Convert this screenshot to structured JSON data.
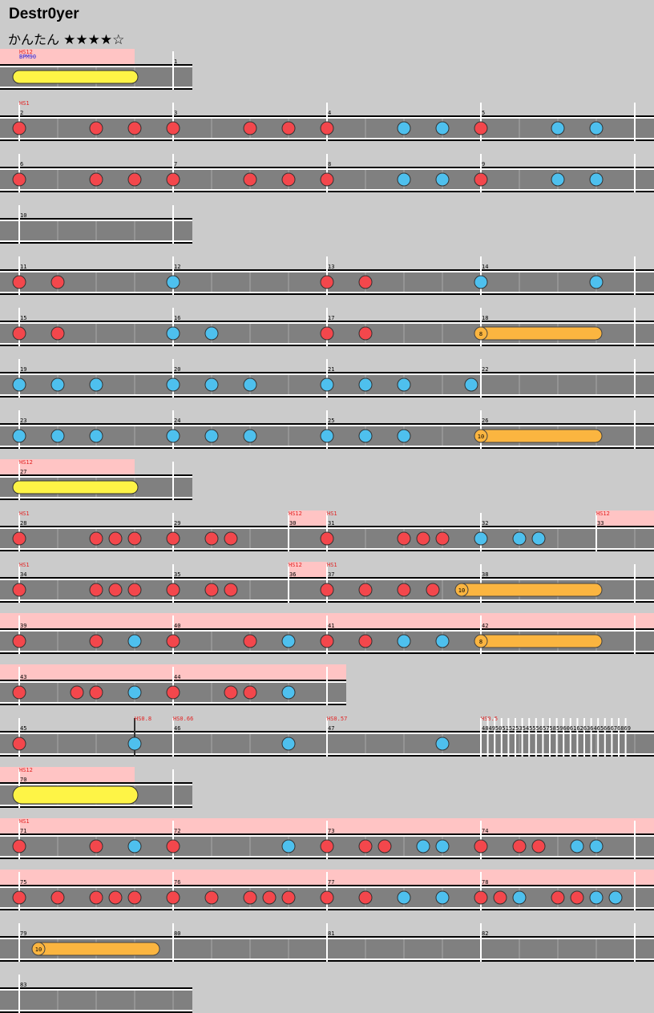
{
  "song": {
    "title": "Destr0yer",
    "difficulty": "かんたん",
    "stars": "★★★★☆"
  },
  "colors": {
    "don": "#f3474c",
    "ka": "#4ec0ee",
    "roll": "#fbb540",
    "balloon": "#fef446",
    "hs": "#ffc4c4",
    "lane": "#808080"
  },
  "rows": [
    {
      "hl": [
        [
          0,
          168
        ]
      ],
      "w": 240,
      "bars": [
        {
          "x": 216,
          "label": "1"
        }
      ],
      "ev": [
        {
          "x": 24,
          "t": "HS12",
          "c": "r",
          "y": 2
        },
        {
          "x": 24,
          "t": "BPM90",
          "c": "b",
          "y": 1
        }
      ],
      "notes": [],
      "rolls": [
        {
          "x1": 24,
          "x2": 164,
          "type": "balloon"
        }
      ]
    },
    {
      "hl": [],
      "w": 816,
      "bars": [
        {
          "x": 24,
          "label": "2"
        },
        {
          "x": 216,
          "label": "3"
        },
        {
          "x": 408,
          "label": "4"
        },
        {
          "x": 600,
          "label": "5"
        },
        {
          "x": 792,
          "label": ""
        }
      ],
      "ev": [
        {
          "x": 24,
          "t": "HS1",
          "c": "r",
          "y": 1
        }
      ],
      "notes": [
        {
          "x": 24,
          "t": "d"
        },
        {
          "x": 120,
          "t": "d"
        },
        {
          "x": 168,
          "t": "d"
        },
        {
          "x": 216,
          "t": "d"
        },
        {
          "x": 312,
          "t": "d"
        },
        {
          "x": 360,
          "t": "d"
        },
        {
          "x": 408,
          "t": "d"
        },
        {
          "x": 504,
          "t": "k"
        },
        {
          "x": 552,
          "t": "k"
        },
        {
          "x": 600,
          "t": "d"
        },
        {
          "x": 696,
          "t": "k"
        },
        {
          "x": 744,
          "t": "k"
        }
      ],
      "rolls": []
    },
    {
      "hl": [],
      "w": 816,
      "bars": [
        {
          "x": 24,
          "label": "6"
        },
        {
          "x": 216,
          "label": "7"
        },
        {
          "x": 408,
          "label": "8"
        },
        {
          "x": 600,
          "label": "9"
        },
        {
          "x": 792,
          "label": ""
        }
      ],
      "ev": [],
      "notes": [
        {
          "x": 24,
          "t": "d"
        },
        {
          "x": 120,
          "t": "d"
        },
        {
          "x": 168,
          "t": "d"
        },
        {
          "x": 216,
          "t": "d"
        },
        {
          "x": 312,
          "t": "d"
        },
        {
          "x": 360,
          "t": "d"
        },
        {
          "x": 408,
          "t": "d"
        },
        {
          "x": 504,
          "t": "k"
        },
        {
          "x": 552,
          "t": "k"
        },
        {
          "x": 600,
          "t": "d"
        },
        {
          "x": 696,
          "t": "k"
        },
        {
          "x": 744,
          "t": "k"
        }
      ],
      "rolls": []
    },
    {
      "hl": [],
      "w": 240,
      "bars": [
        {
          "x": 24,
          "label": "10"
        },
        {
          "x": 216,
          "label": ""
        }
      ],
      "ev": [],
      "notes": [],
      "rolls": []
    },
    {
      "hl": [],
      "w": 816,
      "bars": [
        {
          "x": 24,
          "label": "11"
        },
        {
          "x": 216,
          "label": "12"
        },
        {
          "x": 408,
          "label": "13"
        },
        {
          "x": 600,
          "label": "14"
        },
        {
          "x": 792,
          "label": ""
        }
      ],
      "ev": [],
      "notes": [
        {
          "x": 24,
          "t": "d"
        },
        {
          "x": 72,
          "t": "d"
        },
        {
          "x": 216,
          "t": "k"
        },
        {
          "x": 408,
          "t": "d"
        },
        {
          "x": 456,
          "t": "d"
        },
        {
          "x": 600,
          "t": "k"
        },
        {
          "x": 744,
          "t": "k"
        }
      ],
      "rolls": []
    },
    {
      "hl": [],
      "w": 816,
      "bars": [
        {
          "x": 24,
          "label": "15"
        },
        {
          "x": 216,
          "label": "16"
        },
        {
          "x": 408,
          "label": "17"
        },
        {
          "x": 600,
          "label": "18"
        },
        {
          "x": 792,
          "label": ""
        }
      ],
      "ev": [],
      "notes": [
        {
          "x": 24,
          "t": "d"
        },
        {
          "x": 72,
          "t": "d"
        },
        {
          "x": 216,
          "t": "k"
        },
        {
          "x": 264,
          "t": "k"
        },
        {
          "x": 408,
          "t": "d"
        },
        {
          "x": 456,
          "t": "d"
        }
      ],
      "rolls": [
        {
          "x1": 600,
          "x2": 744,
          "type": "roll",
          "count": "8"
        }
      ]
    },
    {
      "hl": [],
      "w": 816,
      "bars": [
        {
          "x": 24,
          "label": "19"
        },
        {
          "x": 216,
          "label": "20"
        },
        {
          "x": 408,
          "label": "21"
        },
        {
          "x": 600,
          "label": "22"
        },
        {
          "x": 792,
          "label": ""
        }
      ],
      "ev": [],
      "notes": [
        {
          "x": 24,
          "t": "k"
        },
        {
          "x": 72,
          "t": "k"
        },
        {
          "x": 120,
          "t": "k"
        },
        {
          "x": 216,
          "t": "k"
        },
        {
          "x": 264,
          "t": "k"
        },
        {
          "x": 312,
          "t": "k"
        },
        {
          "x": 408,
          "t": "k"
        },
        {
          "x": 456,
          "t": "k"
        },
        {
          "x": 504,
          "t": "k"
        },
        {
          "x": 588,
          "t": "k"
        }
      ],
      "rolls": []
    },
    {
      "hl": [],
      "w": 816,
      "bars": [
        {
          "x": 24,
          "label": "23"
        },
        {
          "x": 216,
          "label": "24"
        },
        {
          "x": 408,
          "label": "25"
        },
        {
          "x": 600,
          "label": "26"
        },
        {
          "x": 792,
          "label": ""
        }
      ],
      "ev": [],
      "notes": [
        {
          "x": 24,
          "t": "k"
        },
        {
          "x": 72,
          "t": "k"
        },
        {
          "x": 120,
          "t": "k"
        },
        {
          "x": 216,
          "t": "k"
        },
        {
          "x": 264,
          "t": "k"
        },
        {
          "x": 312,
          "t": "k"
        },
        {
          "x": 408,
          "t": "k"
        },
        {
          "x": 456,
          "t": "k"
        },
        {
          "x": 504,
          "t": "k"
        }
      ],
      "rolls": [
        {
          "x1": 600,
          "x2": 744,
          "type": "roll",
          "count": "10"
        }
      ]
    },
    {
      "hl": [
        [
          0,
          168
        ]
      ],
      "w": 240,
      "bars": [
        {
          "x": 24,
          "label": "27"
        },
        {
          "x": 216,
          "label": ""
        }
      ],
      "ev": [
        {
          "x": 24,
          "t": "HS12",
          "c": "r",
          "y": 1
        }
      ],
      "notes": [],
      "rolls": [
        {
          "x1": 24,
          "x2": 164,
          "type": "balloon"
        }
      ]
    },
    {
      "hl": [
        [
          360,
          408
        ],
        [
          744,
          816
        ]
      ],
      "w": 816,
      "bars": [
        {
          "x": 24,
          "label": "28"
        },
        {
          "x": 216,
          "label": "29"
        },
        {
          "x": 360,
          "label": "30"
        },
        {
          "x": 408,
          "label": "31"
        },
        {
          "x": 600,
          "label": "32"
        },
        {
          "x": 744,
          "label": "33"
        }
      ],
      "ev": [
        {
          "x": 24,
          "t": "HS1",
          "c": "r",
          "y": 1
        },
        {
          "x": 360,
          "t": "HS12",
          "c": "r",
          "y": 1
        },
        {
          "x": 408,
          "t": "HS1",
          "c": "r",
          "y": 1
        },
        {
          "x": 744,
          "t": "HS12",
          "c": "r",
          "y": 1
        }
      ],
      "notes": [
        {
          "x": 24,
          "t": "d"
        },
        {
          "x": 120,
          "t": "d"
        },
        {
          "x": 144,
          "t": "d"
        },
        {
          "x": 168,
          "t": "d"
        },
        {
          "x": 216,
          "t": "d"
        },
        {
          "x": 264,
          "t": "d"
        },
        {
          "x": 288,
          "t": "d"
        },
        {
          "x": 408,
          "t": "d"
        },
        {
          "x": 504,
          "t": "d"
        },
        {
          "x": 528,
          "t": "d"
        },
        {
          "x": 552,
          "t": "d"
        },
        {
          "x": 600,
          "t": "k"
        },
        {
          "x": 648,
          "t": "k"
        },
        {
          "x": 672,
          "t": "k"
        }
      ],
      "rolls": []
    },
    {
      "hl": [
        [
          360,
          408
        ]
      ],
      "w": 816,
      "bars": [
        {
          "x": 24,
          "label": "34"
        },
        {
          "x": 216,
          "label": "35"
        },
        {
          "x": 360,
          "label": "36"
        },
        {
          "x": 408,
          "label": "37"
        },
        {
          "x": 600,
          "label": "38"
        },
        {
          "x": 792,
          "label": ""
        }
      ],
      "ev": [
        {
          "x": 24,
          "t": "HS1",
          "c": "r",
          "y": 1
        },
        {
          "x": 360,
          "t": "HS12",
          "c": "r",
          "y": 1
        },
        {
          "x": 408,
          "t": "HS1",
          "c": "r",
          "y": 1
        }
      ],
      "notes": [
        {
          "x": 24,
          "t": "d"
        },
        {
          "x": 120,
          "t": "d"
        },
        {
          "x": 144,
          "t": "d"
        },
        {
          "x": 168,
          "t": "d"
        },
        {
          "x": 216,
          "t": "d"
        },
        {
          "x": 264,
          "t": "d"
        },
        {
          "x": 288,
          "t": "d"
        },
        {
          "x": 408,
          "t": "d"
        },
        {
          "x": 456,
          "t": "d"
        },
        {
          "x": 504,
          "t": "d"
        },
        {
          "x": 540,
          "t": "d"
        }
      ],
      "rolls": [
        {
          "x1": 576,
          "x2": 744,
          "type": "roll",
          "count": "10"
        }
      ]
    },
    {
      "hl": [
        [
          0,
          816
        ]
      ],
      "w": 816,
      "bars": [
        {
          "x": 24,
          "label": "39"
        },
        {
          "x": 216,
          "label": "40"
        },
        {
          "x": 408,
          "label": "41"
        },
        {
          "x": 600,
          "label": "42"
        },
        {
          "x": 792,
          "label": ""
        }
      ],
      "ev": [],
      "notes": [
        {
          "x": 24,
          "t": "d"
        },
        {
          "x": 120,
          "t": "d"
        },
        {
          "x": 168,
          "t": "k"
        },
        {
          "x": 216,
          "t": "d"
        },
        {
          "x": 312,
          "t": "d"
        },
        {
          "x": 360,
          "t": "k"
        },
        {
          "x": 408,
          "t": "d"
        },
        {
          "x": 456,
          "t": "d"
        },
        {
          "x": 504,
          "t": "k"
        },
        {
          "x": 552,
          "t": "k"
        }
      ],
      "rolls": [
        {
          "x1": 600,
          "x2": 744,
          "type": "roll",
          "count": "8"
        }
      ]
    },
    {
      "hl": [
        [
          0,
          432
        ]
      ],
      "w": 432,
      "bars": [
        {
          "x": 24,
          "label": "43"
        },
        {
          "x": 216,
          "label": "44"
        },
        {
          "x": 408,
          "label": ""
        }
      ],
      "ev": [],
      "notes": [
        {
          "x": 24,
          "t": "d"
        },
        {
          "x": 96,
          "t": "d"
        },
        {
          "x": 120,
          "t": "d"
        },
        {
          "x": 168,
          "t": "k"
        },
        {
          "x": 216,
          "t": "d"
        },
        {
          "x": 288,
          "t": "d"
        },
        {
          "x": 312,
          "t": "d"
        },
        {
          "x": 360,
          "t": "k"
        }
      ],
      "rolls": []
    },
    {
      "hl": [],
      "w": 816,
      "bars": [
        {
          "x": 24,
          "label": "45"
        },
        {
          "x": 168,
          "label": "",
          "dark": true
        },
        {
          "x": 216,
          "label": "46"
        },
        {
          "x": 408,
          "label": "47"
        }
      ],
      "ev": [
        {
          "x": 168,
          "t": "HS0.8",
          "c": "r",
          "y": 1
        },
        {
          "x": 216,
          "t": "HS0.66",
          "c": "r",
          "y": 1
        },
        {
          "x": 408,
          "t": "HS0.57",
          "c": "r",
          "y": 1
        },
        {
          "x": 600,
          "t": "HS0.5",
          "c": "r",
          "y": 1
        }
      ],
      "notes": [
        {
          "x": 24,
          "t": "d"
        },
        {
          "x": 168,
          "t": "k"
        },
        {
          "x": 360,
          "t": "k"
        },
        {
          "x": 552,
          "t": "k"
        }
      ],
      "rolls": [],
      "dense": {
        "x": 600,
        "text": "48495051525354555657585960616263646566676869"
      }
    },
    {
      "hl": [
        [
          0,
          168
        ]
      ],
      "w": 240,
      "bars": [
        {
          "x": 24,
          "label": "70"
        },
        {
          "x": 216,
          "label": ""
        }
      ],
      "ev": [
        {
          "x": 24,
          "t": "HS12",
          "c": "r",
          "y": 1
        }
      ],
      "notes": [],
      "rolls": [
        {
          "x1": 24,
          "x2": 164,
          "type": "balloon",
          "big": true
        }
      ]
    },
    {
      "hl": [
        [
          0,
          816
        ]
      ],
      "w": 816,
      "bars": [
        {
          "x": 24,
          "label": "71"
        },
        {
          "x": 216,
          "label": "72"
        },
        {
          "x": 408,
          "label": "73"
        },
        {
          "x": 600,
          "label": "74"
        },
        {
          "x": 792,
          "label": ""
        }
      ],
      "ev": [
        {
          "x": 24,
          "t": "HS1",
          "c": "r",
          "y": 1
        }
      ],
      "notes": [
        {
          "x": 24,
          "t": "d"
        },
        {
          "x": 120,
          "t": "d"
        },
        {
          "x": 168,
          "t": "k"
        },
        {
          "x": 216,
          "t": "d"
        },
        {
          "x": 360,
          "t": "k"
        },
        {
          "x": 408,
          "t": "d"
        },
        {
          "x": 456,
          "t": "d"
        },
        {
          "x": 480,
          "t": "d"
        },
        {
          "x": 528,
          "t": "k"
        },
        {
          "x": 552,
          "t": "k"
        },
        {
          "x": 600,
          "t": "d"
        },
        {
          "x": 648,
          "t": "d"
        },
        {
          "x": 672,
          "t": "d"
        },
        {
          "x": 720,
          "t": "k"
        },
        {
          "x": 744,
          "t": "k"
        }
      ],
      "rolls": []
    },
    {
      "hl": [
        [
          0,
          816
        ]
      ],
      "w": 816,
      "bars": [
        {
          "x": 24,
          "label": "75"
        },
        {
          "x": 216,
          "label": "76"
        },
        {
          "x": 408,
          "label": "77"
        },
        {
          "x": 600,
          "label": "78"
        },
        {
          "x": 792,
          "label": ""
        }
      ],
      "ev": [],
      "notes": [
        {
          "x": 24,
          "t": "d"
        },
        {
          "x": 72,
          "t": "d"
        },
        {
          "x": 120,
          "t": "d"
        },
        {
          "x": 144,
          "t": "d"
        },
        {
          "x": 168,
          "t": "d"
        },
        {
          "x": 216,
          "t": "d"
        },
        {
          "x": 264,
          "t": "d"
        },
        {
          "x": 312,
          "t": "d"
        },
        {
          "x": 336,
          "t": "d"
        },
        {
          "x": 360,
          "t": "d"
        },
        {
          "x": 408,
          "t": "d"
        },
        {
          "x": 456,
          "t": "d"
        },
        {
          "x": 504,
          "t": "k"
        },
        {
          "x": 552,
          "t": "k"
        },
        {
          "x": 600,
          "t": "d"
        },
        {
          "x": 624,
          "t": "d"
        },
        {
          "x": 648,
          "t": "k"
        },
        {
          "x": 696,
          "t": "d"
        },
        {
          "x": 720,
          "t": "d"
        },
        {
          "x": 744,
          "t": "k"
        },
        {
          "x": 768,
          "t": "k"
        }
      ],
      "rolls": []
    },
    {
      "hl": [],
      "w": 816,
      "bars": [
        {
          "x": 24,
          "label": "79"
        },
        {
          "x": 216,
          "label": "80"
        },
        {
          "x": 408,
          "label": "81"
        },
        {
          "x": 600,
          "label": "82"
        },
        {
          "x": 792,
          "label": ""
        }
      ],
      "ev": [],
      "notes": [],
      "rolls": [
        {
          "x1": 48,
          "x2": 192,
          "type": "roll",
          "count": "10"
        }
      ]
    },
    {
      "hl": [],
      "w": 240,
      "bars": [
        {
          "x": 24,
          "label": "83"
        }
      ],
      "ev": [],
      "notes": [],
      "rolls": []
    }
  ]
}
